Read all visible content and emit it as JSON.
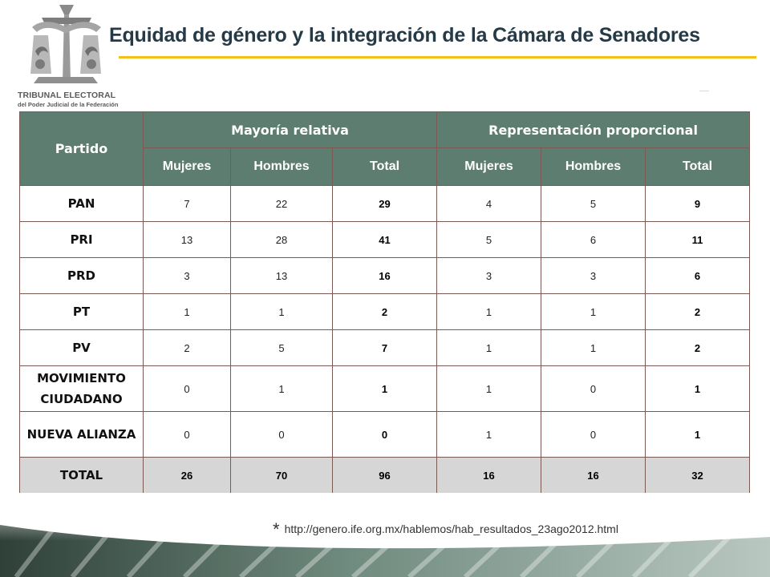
{
  "logo": {
    "line1": "TRIBUNAL ELECTORAL",
    "line2": "del Poder Judicial de la Federación"
  },
  "title": "Equidad de género y la integración de la Cámara de Senadores",
  "table": {
    "col_party": "Partido",
    "group1": "Mayoría relativa",
    "group2": "Representación proporcional",
    "subheaders": [
      "Mujeres",
      "Hombres",
      "Total",
      "Mujeres",
      "Hombres",
      "Total"
    ],
    "rows": [
      {
        "party": "PAN",
        "values": [
          "7",
          "22",
          "29",
          "4",
          "5",
          "9"
        ]
      },
      {
        "party": "PRI",
        "values": [
          "13",
          "28",
          "41",
          "5",
          "6",
          "11"
        ]
      },
      {
        "party": "PRD",
        "values": [
          "3",
          "13",
          "16",
          "3",
          "3",
          "6"
        ]
      },
      {
        "party": "PT",
        "values": [
          "1",
          "1",
          "2",
          "1",
          "1",
          "2"
        ]
      },
      {
        "party": "PV",
        "values": [
          "2",
          "5",
          "7",
          "1",
          "1",
          "2"
        ]
      },
      {
        "party": "MOVIMIENTO CIUDADANO",
        "values": [
          "0",
          "1",
          "1",
          "1",
          "0",
          "1"
        ]
      },
      {
        "party": "NUEVA ALIANZA",
        "values": [
          "0",
          "0",
          "0",
          "1",
          "0",
          "1"
        ]
      }
    ],
    "total": {
      "party": "TOTAL",
      "values": [
        "26",
        "70",
        "96",
        "16",
        "16",
        "32"
      ]
    }
  },
  "footnote": {
    "star": "*",
    "url": "http://genero.ife.org.mx/hablemos/hab_resultados_23ago2012.html"
  },
  "colors": {
    "header_bg": "#5e7d71",
    "title_rule": "#f2c01d",
    "total_bg": "#d6d6d6",
    "title_text": "#243a46"
  }
}
